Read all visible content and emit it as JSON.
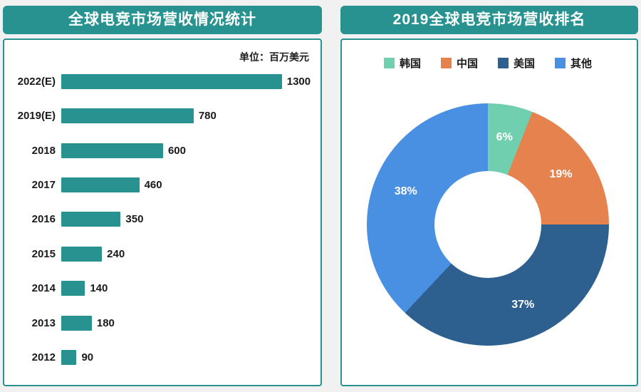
{
  "colors": {
    "accent_teal": "#27928f",
    "page_background": "#f1f1f1",
    "panel_background": "#ffffff",
    "text_dark": "#1a1a1a",
    "label_white": "#ffffff"
  },
  "chart_data": [
    {
      "type": "bar",
      "orientation": "horizontal",
      "title": "全球电竞市场营收情况统计",
      "unit": "单位：百万美元",
      "categories": [
        "2022(E)",
        "2019(E)",
        "2018",
        "2017",
        "2016",
        "2015",
        "2014",
        "2013",
        "2012"
      ],
      "values": [
        1300,
        780,
        600,
        460,
        350,
        240,
        140,
        180,
        90
      ],
      "xlim": [
        0,
        1300
      ],
      "bar_color": "#27928f",
      "grid": false,
      "value_labels": "end-of-bar"
    },
    {
      "type": "pie",
      "subtype": "donut",
      "title": "2019全球电竞市场营收排名",
      "legend_position": "top",
      "segments": [
        {
          "label": "韩国",
          "value": 6,
          "color": "#6fcfae"
        },
        {
          "label": "中国",
          "value": 19,
          "color": "#e6824e"
        },
        {
          "label": "美国",
          "value": 37,
          "color": "#2d5f8f"
        },
        {
          "label": "其他",
          "value": 38,
          "color": "#4a90e2"
        }
      ],
      "slice_label_format": "percent"
    }
  ]
}
